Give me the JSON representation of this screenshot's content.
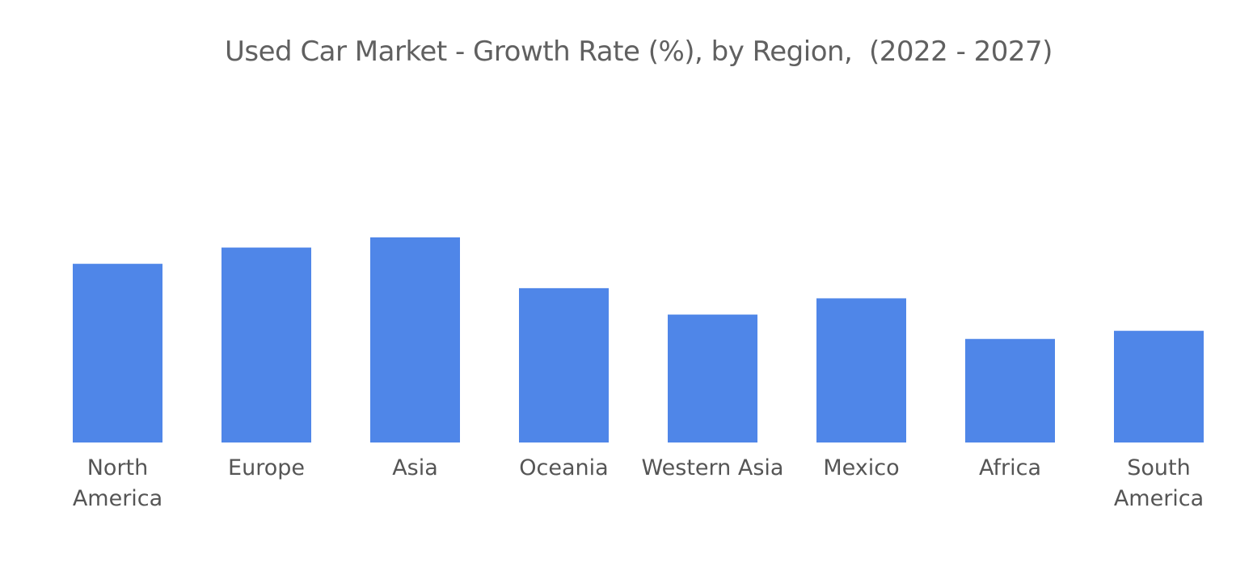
{
  "chart_data": {
    "type": "bar",
    "title": "Used Car Market - Growth Rate (%), by Region,  (2022 - 2027)",
    "xlabel": "",
    "ylabel": "",
    "categories": [
      "North America",
      "Europe",
      "Asia",
      "Oceania",
      "Western Asia",
      "Mexico",
      "Africa",
      "South America"
    ],
    "category_lines": [
      [
        "North",
        "America"
      ],
      [
        "Europe"
      ],
      [
        "Asia"
      ],
      [
        "Oceania"
      ],
      [
        "Western Asia"
      ],
      [
        "Mexico"
      ],
      [
        "Africa"
      ],
      [
        "South",
        "America"
      ]
    ],
    "values": [
      8.8,
      9.6,
      10.1,
      7.6,
      6.3,
      7.1,
      5.1,
      5.5
    ],
    "ylim": [
      0,
      10.1
    ],
    "grid": false,
    "legend": "none",
    "bar_color": "#4f86e8"
  }
}
